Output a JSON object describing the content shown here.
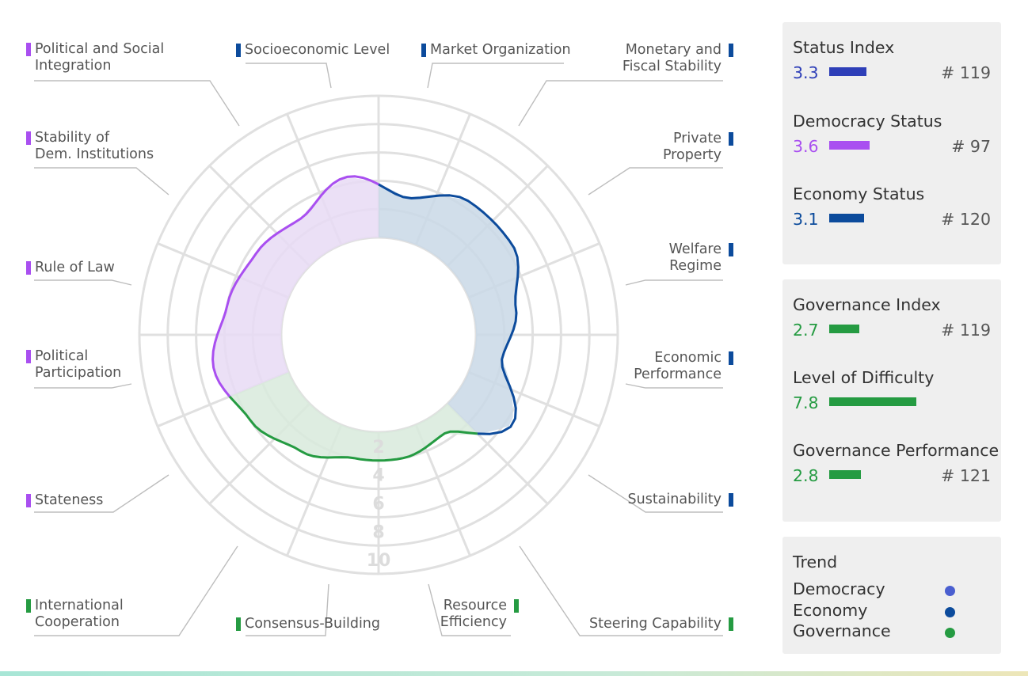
{
  "chart_data": {
    "type": "radar",
    "scale": [
      0,
      10
    ],
    "ring_labels": [
      "2",
      "4",
      "6",
      "8",
      "10"
    ],
    "axes": [
      {
        "label": "Socioeconomic Level",
        "group": "Economy",
        "value": 3
      },
      {
        "label": "Market Organization",
        "group": "Economy",
        "value": 4.5
      },
      {
        "label": "Monetary and Fiscal Stability",
        "group": "Economy",
        "value": 4.5
      },
      {
        "label": "Private Property",
        "group": "Economy",
        "value": 3
      },
      {
        "label": "Welfare Regime",
        "group": "Economy",
        "value": 2
      },
      {
        "label": "Economic Performance",
        "group": "Economy",
        "value": 4.5
      },
      {
        "label": "Sustainability",
        "group": "Economy",
        "value": 1.5
      },
      {
        "label": "Steering Capability",
        "group": "Governance",
        "value": 2
      },
      {
        "label": "Resource Efficiency",
        "group": "Governance",
        "value": 2
      },
      {
        "label": "Consensus-Building",
        "group": "Governance",
        "value": 3
      },
      {
        "label": "International Cooperation",
        "group": "Governance",
        "value": 4
      },
      {
        "label": "Stateness",
        "group": "Democracy",
        "value": 5
      },
      {
        "label": "Political Participation",
        "group": "Democracy",
        "value": 4
      },
      {
        "label": "Rule of Law",
        "group": "Democracy",
        "value": 3.5
      },
      {
        "label": "Stability of Dem. Institutions",
        "group": "Democracy",
        "value": 3
      },
      {
        "label": "Political and Social Integration",
        "group": "Democracy",
        "value": 4.5
      }
    ],
    "group_colors": {
      "Democracy": "#a94ff0",
      "Economy": "#0c4b9c",
      "Governance": "#259b42"
    },
    "group_fills": {
      "Democracy": "#e8dbf5",
      "Economy": "#c9d8e6",
      "Governance": "#d8eadc"
    }
  },
  "axis_labels": [
    {
      "lines": [
        "Political and Social",
        "Integration"
      ]
    },
    {
      "lines": [
        "Socioeconomic Level"
      ]
    },
    {
      "lines": [
        "Market Organization"
      ]
    },
    {
      "lines": [
        "Monetary and",
        "Fiscal Stability"
      ]
    },
    {
      "lines": [
        "Stability of",
        "Dem. Institutions"
      ]
    },
    {
      "lines": [
        "Private",
        "Property"
      ]
    },
    {
      "lines": [
        "Rule of Law"
      ]
    },
    {
      "lines": [
        "Welfare",
        "Regime"
      ]
    },
    {
      "lines": [
        "Political",
        "Participation"
      ]
    },
    {
      "lines": [
        "Economic",
        "Performance"
      ]
    },
    {
      "lines": [
        "Stateness"
      ]
    },
    {
      "lines": [
        "Sustainability"
      ]
    },
    {
      "lines": [
        "International",
        "Cooperation"
      ]
    },
    {
      "lines": [
        "Consensus-Building"
      ]
    },
    {
      "lines": [
        "Resource",
        "Efficiency"
      ]
    },
    {
      "lines": [
        "Steering Capability"
      ]
    }
  ],
  "status_panel": [
    {
      "name": "Status Index",
      "value": "3.3",
      "rank": "# 119",
      "color": "#2e3fb8",
      "frac": 0.33
    },
    {
      "name": "Democracy Status",
      "value": "3.6",
      "rank": "# 97",
      "color": "#a94ff0",
      "frac": 0.36
    },
    {
      "name": "Economy Status",
      "value": "3.1",
      "rank": "# 120",
      "color": "#0c4b9c",
      "frac": 0.31
    }
  ],
  "governance_panel": [
    {
      "name": "Governance Index",
      "value": "2.7",
      "rank": "# 119",
      "color": "#259b42",
      "frac": 0.27
    },
    {
      "name": "Level of Difficulty",
      "value": "7.8",
      "rank": "",
      "color": "#259b42",
      "frac": 0.78
    },
    {
      "name": "Governance Performance",
      "value": "2.8",
      "rank": "# 121",
      "color": "#259b42",
      "frac": 0.28
    }
  ],
  "trend": {
    "title": "Trend",
    "items": [
      {
        "label": "Democracy",
        "color": "#4a5fd0"
      },
      {
        "label": "Economy",
        "color": "#0c4b9c"
      },
      {
        "label": "Governance",
        "color": "#259b42"
      }
    ]
  }
}
